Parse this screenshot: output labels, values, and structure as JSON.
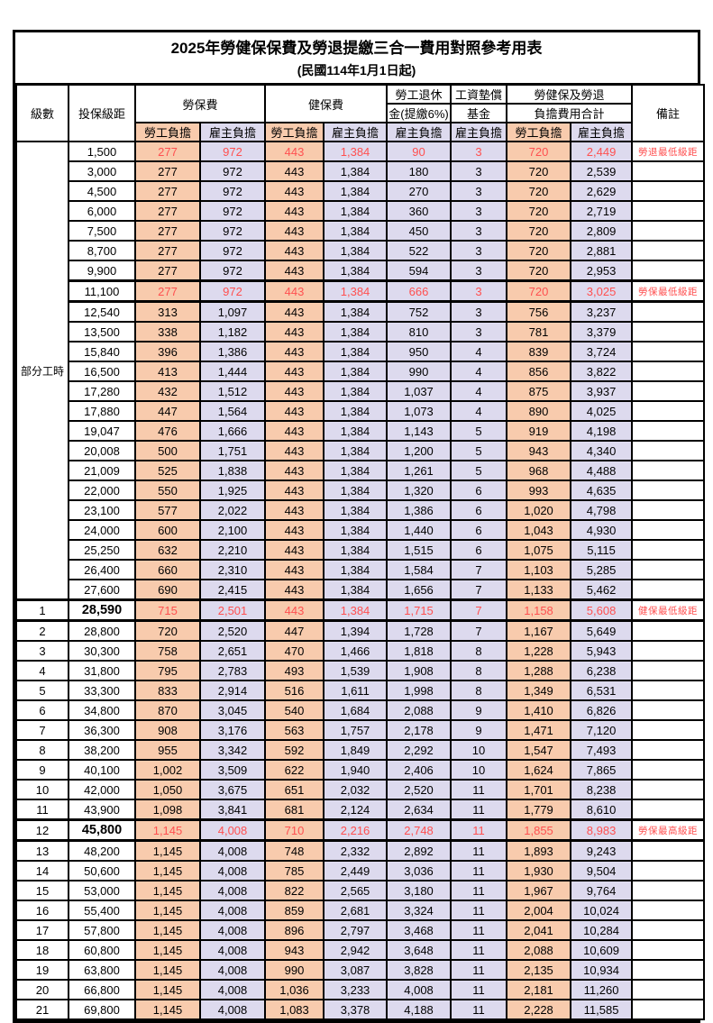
{
  "title": "2025年勞健保保費及勞退提繳三合一費用對照參考用表",
  "subtitle": "(民國114年1月1日起)",
  "header": {
    "level": "級數",
    "salary": "投保級距",
    "labor_insurance": "勞保費",
    "health_insurance": "健保費",
    "pension_line1": "勞工退休",
    "pension_line2": "金(提繳6%)",
    "wage_fund_line1": "工資墊償",
    "wage_fund_line2": "基金",
    "total_line1": "勞健保及勞退",
    "total_line2": "負擔費用合計",
    "remark": "備註",
    "employee_share": "勞工負擔",
    "employer_share": "雇主負擔"
  },
  "part_time": {
    "label": "部分工時",
    "span": 23
  },
  "colors": {
    "employee_bg": "#F8CBAD",
    "employer_bg": "#DDDAEE",
    "highlight_red": "#FF5050",
    "border": "#000000"
  },
  "rows": [
    {
      "level": "",
      "salary": "1,500",
      "li_emp": "277",
      "li_er": "972",
      "hi_emp": "443",
      "hi_er": "1,384",
      "pension": "90",
      "fund": "3",
      "tot_emp": "720",
      "tot_er": "2,449",
      "remark": "勞退最低級距",
      "red": true,
      "thick": false,
      "bold": false
    },
    {
      "level": "",
      "salary": "3,000",
      "li_emp": "277",
      "li_er": "972",
      "hi_emp": "443",
      "hi_er": "1,384",
      "pension": "180",
      "fund": "3",
      "tot_emp": "720",
      "tot_er": "2,539",
      "remark": "",
      "red": false,
      "thick": false,
      "bold": false
    },
    {
      "level": "",
      "salary": "4,500",
      "li_emp": "277",
      "li_er": "972",
      "hi_emp": "443",
      "hi_er": "1,384",
      "pension": "270",
      "fund": "3",
      "tot_emp": "720",
      "tot_er": "2,629",
      "remark": "",
      "red": false,
      "thick": false,
      "bold": false
    },
    {
      "level": "",
      "salary": "6,000",
      "li_emp": "277",
      "li_er": "972",
      "hi_emp": "443",
      "hi_er": "1,384",
      "pension": "360",
      "fund": "3",
      "tot_emp": "720",
      "tot_er": "2,719",
      "remark": "",
      "red": false,
      "thick": false,
      "bold": false
    },
    {
      "level": "",
      "salary": "7,500",
      "li_emp": "277",
      "li_er": "972",
      "hi_emp": "443",
      "hi_er": "1,384",
      "pension": "450",
      "fund": "3",
      "tot_emp": "720",
      "tot_er": "2,809",
      "remark": "",
      "red": false,
      "thick": false,
      "bold": false
    },
    {
      "level": "",
      "salary": "8,700",
      "li_emp": "277",
      "li_er": "972",
      "hi_emp": "443",
      "hi_er": "1,384",
      "pension": "522",
      "fund": "3",
      "tot_emp": "720",
      "tot_er": "2,881",
      "remark": "",
      "red": false,
      "thick": false,
      "bold": false
    },
    {
      "level": "",
      "salary": "9,900",
      "li_emp": "277",
      "li_er": "972",
      "hi_emp": "443",
      "hi_er": "1,384",
      "pension": "594",
      "fund": "3",
      "tot_emp": "720",
      "tot_er": "2,953",
      "remark": "",
      "red": false,
      "thick": false,
      "bold": false
    },
    {
      "level": "",
      "salary": "11,100",
      "li_emp": "277",
      "li_er": "972",
      "hi_emp": "443",
      "hi_er": "1,384",
      "pension": "666",
      "fund": "3",
      "tot_emp": "720",
      "tot_er": "3,025",
      "remark": "勞保最低級距",
      "red": true,
      "thick": true,
      "bold": false
    },
    {
      "level": "",
      "salary": "12,540",
      "li_emp": "313",
      "li_er": "1,097",
      "hi_emp": "443",
      "hi_er": "1,384",
      "pension": "752",
      "fund": "3",
      "tot_emp": "756",
      "tot_er": "3,237",
      "remark": "",
      "red": false,
      "thick": false,
      "bold": false
    },
    {
      "level": "",
      "salary": "13,500",
      "li_emp": "338",
      "li_er": "1,182",
      "hi_emp": "443",
      "hi_er": "1,384",
      "pension": "810",
      "fund": "3",
      "tot_emp": "781",
      "tot_er": "3,379",
      "remark": "",
      "red": false,
      "thick": false,
      "bold": false
    },
    {
      "level": "",
      "salary": "15,840",
      "li_emp": "396",
      "li_er": "1,386",
      "hi_emp": "443",
      "hi_er": "1,384",
      "pension": "950",
      "fund": "4",
      "tot_emp": "839",
      "tot_er": "3,724",
      "remark": "",
      "red": false,
      "thick": false,
      "bold": false
    },
    {
      "level": "",
      "salary": "16,500",
      "li_emp": "413",
      "li_er": "1,444",
      "hi_emp": "443",
      "hi_er": "1,384",
      "pension": "990",
      "fund": "4",
      "tot_emp": "856",
      "tot_er": "3,822",
      "remark": "",
      "red": false,
      "thick": false,
      "bold": false
    },
    {
      "level": "",
      "salary": "17,280",
      "li_emp": "432",
      "li_er": "1,512",
      "hi_emp": "443",
      "hi_er": "1,384",
      "pension": "1,037",
      "fund": "4",
      "tot_emp": "875",
      "tot_er": "3,937",
      "remark": "",
      "red": false,
      "thick": false,
      "bold": false
    },
    {
      "level": "",
      "salary": "17,880",
      "li_emp": "447",
      "li_er": "1,564",
      "hi_emp": "443",
      "hi_er": "1,384",
      "pension": "1,073",
      "fund": "4",
      "tot_emp": "890",
      "tot_er": "4,025",
      "remark": "",
      "red": false,
      "thick": false,
      "bold": false
    },
    {
      "level": "",
      "salary": "19,047",
      "li_emp": "476",
      "li_er": "1,666",
      "hi_emp": "443",
      "hi_er": "1,384",
      "pension": "1,143",
      "fund": "5",
      "tot_emp": "919",
      "tot_er": "4,198",
      "remark": "",
      "red": false,
      "thick": false,
      "bold": false
    },
    {
      "level": "",
      "salary": "20,008",
      "li_emp": "500",
      "li_er": "1,751",
      "hi_emp": "443",
      "hi_er": "1,384",
      "pension": "1,200",
      "fund": "5",
      "tot_emp": "943",
      "tot_er": "4,340",
      "remark": "",
      "red": false,
      "thick": false,
      "bold": false
    },
    {
      "level": "",
      "salary": "21,009",
      "li_emp": "525",
      "li_er": "1,838",
      "hi_emp": "443",
      "hi_er": "1,384",
      "pension": "1,261",
      "fund": "5",
      "tot_emp": "968",
      "tot_er": "4,488",
      "remark": "",
      "red": false,
      "thick": false,
      "bold": false
    },
    {
      "level": "",
      "salary": "22,000",
      "li_emp": "550",
      "li_er": "1,925",
      "hi_emp": "443",
      "hi_er": "1,384",
      "pension": "1,320",
      "fund": "6",
      "tot_emp": "993",
      "tot_er": "4,635",
      "remark": "",
      "red": false,
      "thick": false,
      "bold": false
    },
    {
      "level": "",
      "salary": "23,100",
      "li_emp": "577",
      "li_er": "2,022",
      "hi_emp": "443",
      "hi_er": "1,384",
      "pension": "1,386",
      "fund": "6",
      "tot_emp": "1,020",
      "tot_er": "4,798",
      "remark": "",
      "red": false,
      "thick": false,
      "bold": false
    },
    {
      "level": "",
      "salary": "24,000",
      "li_emp": "600",
      "li_er": "2,100",
      "hi_emp": "443",
      "hi_er": "1,384",
      "pension": "1,440",
      "fund": "6",
      "tot_emp": "1,043",
      "tot_er": "4,930",
      "remark": "",
      "red": false,
      "thick": false,
      "bold": false
    },
    {
      "level": "",
      "salary": "25,250",
      "li_emp": "632",
      "li_er": "2,210",
      "hi_emp": "443",
      "hi_er": "1,384",
      "pension": "1,515",
      "fund": "6",
      "tot_emp": "1,075",
      "tot_er": "5,115",
      "remark": "",
      "red": false,
      "thick": false,
      "bold": false
    },
    {
      "level": "",
      "salary": "26,400",
      "li_emp": "660",
      "li_er": "2,310",
      "hi_emp": "443",
      "hi_er": "1,384",
      "pension": "1,584",
      "fund": "7",
      "tot_emp": "1,103",
      "tot_er": "5,285",
      "remark": "",
      "red": false,
      "thick": false,
      "bold": false
    },
    {
      "level": "",
      "salary": "27,600",
      "li_emp": "690",
      "li_er": "2,415",
      "hi_emp": "443",
      "hi_er": "1,384",
      "pension": "1,656",
      "fund": "7",
      "tot_emp": "1,133",
      "tot_er": "5,462",
      "remark": "",
      "red": false,
      "thick": false,
      "bold": false
    },
    {
      "level": "1",
      "salary": "28,590",
      "li_emp": "715",
      "li_er": "2,501",
      "hi_emp": "443",
      "hi_er": "1,384",
      "pension": "1,715",
      "fund": "7",
      "tot_emp": "1,158",
      "tot_er": "5,608",
      "remark": "健保最低級距",
      "red": true,
      "thick": true,
      "bold": true
    },
    {
      "level": "2",
      "salary": "28,800",
      "li_emp": "720",
      "li_er": "2,520",
      "hi_emp": "447",
      "hi_er": "1,394",
      "pension": "1,728",
      "fund": "7",
      "tot_emp": "1,167",
      "tot_er": "5,649",
      "remark": "",
      "red": false,
      "thick": false,
      "bold": false
    },
    {
      "level": "3",
      "salary": "30,300",
      "li_emp": "758",
      "li_er": "2,651",
      "hi_emp": "470",
      "hi_er": "1,466",
      "pension": "1,818",
      "fund": "8",
      "tot_emp": "1,228",
      "tot_er": "5,943",
      "remark": "",
      "red": false,
      "thick": false,
      "bold": false
    },
    {
      "level": "4",
      "salary": "31,800",
      "li_emp": "795",
      "li_er": "2,783",
      "hi_emp": "493",
      "hi_er": "1,539",
      "pension": "1,908",
      "fund": "8",
      "tot_emp": "1,288",
      "tot_er": "6,238",
      "remark": "",
      "red": false,
      "thick": false,
      "bold": false
    },
    {
      "level": "5",
      "salary": "33,300",
      "li_emp": "833",
      "li_er": "2,914",
      "hi_emp": "516",
      "hi_er": "1,611",
      "pension": "1,998",
      "fund": "8",
      "tot_emp": "1,349",
      "tot_er": "6,531",
      "remark": "",
      "red": false,
      "thick": false,
      "bold": false
    },
    {
      "level": "6",
      "salary": "34,800",
      "li_emp": "870",
      "li_er": "3,045",
      "hi_emp": "540",
      "hi_er": "1,684",
      "pension": "2,088",
      "fund": "9",
      "tot_emp": "1,410",
      "tot_er": "6,826",
      "remark": "",
      "red": false,
      "thick": false,
      "bold": false
    },
    {
      "level": "7",
      "salary": "36,300",
      "li_emp": "908",
      "li_er": "3,176",
      "hi_emp": "563",
      "hi_er": "1,757",
      "pension": "2,178",
      "fund": "9",
      "tot_emp": "1,471",
      "tot_er": "7,120",
      "remark": "",
      "red": false,
      "thick": false,
      "bold": false
    },
    {
      "level": "8",
      "salary": "38,200",
      "li_emp": "955",
      "li_er": "3,342",
      "hi_emp": "592",
      "hi_er": "1,849",
      "pension": "2,292",
      "fund": "10",
      "tot_emp": "1,547",
      "tot_er": "7,493",
      "remark": "",
      "red": false,
      "thick": false,
      "bold": false
    },
    {
      "level": "9",
      "salary": "40,100",
      "li_emp": "1,002",
      "li_er": "3,509",
      "hi_emp": "622",
      "hi_er": "1,940",
      "pension": "2,406",
      "fund": "10",
      "tot_emp": "1,624",
      "tot_er": "7,865",
      "remark": "",
      "red": false,
      "thick": false,
      "bold": false
    },
    {
      "level": "10",
      "salary": "42,000",
      "li_emp": "1,050",
      "li_er": "3,675",
      "hi_emp": "651",
      "hi_er": "2,032",
      "pension": "2,520",
      "fund": "11",
      "tot_emp": "1,701",
      "tot_er": "8,238",
      "remark": "",
      "red": false,
      "thick": false,
      "bold": false
    },
    {
      "level": "11",
      "salary": "43,900",
      "li_emp": "1,098",
      "li_er": "3,841",
      "hi_emp": "681",
      "hi_er": "2,124",
      "pension": "2,634",
      "fund": "11",
      "tot_emp": "1,779",
      "tot_er": "8,610",
      "remark": "",
      "red": false,
      "thick": false,
      "bold": false
    },
    {
      "level": "12",
      "salary": "45,800",
      "li_emp": "1,145",
      "li_er": "4,008",
      "hi_emp": "710",
      "hi_er": "2,216",
      "pension": "2,748",
      "fund": "11",
      "tot_emp": "1,855",
      "tot_er": "8,983",
      "remark": "勞保最高級距",
      "red": true,
      "thick": true,
      "bold": true
    },
    {
      "level": "13",
      "salary": "48,200",
      "li_emp": "1,145",
      "li_er": "4,008",
      "hi_emp": "748",
      "hi_er": "2,332",
      "pension": "2,892",
      "fund": "11",
      "tot_emp": "1,893",
      "tot_er": "9,243",
      "remark": "",
      "red": false,
      "thick": false,
      "bold": false
    },
    {
      "level": "14",
      "salary": "50,600",
      "li_emp": "1,145",
      "li_er": "4,008",
      "hi_emp": "785",
      "hi_er": "2,449",
      "pension": "3,036",
      "fund": "11",
      "tot_emp": "1,930",
      "tot_er": "9,504",
      "remark": "",
      "red": false,
      "thick": false,
      "bold": false
    },
    {
      "level": "15",
      "salary": "53,000",
      "li_emp": "1,145",
      "li_er": "4,008",
      "hi_emp": "822",
      "hi_er": "2,565",
      "pension": "3,180",
      "fund": "11",
      "tot_emp": "1,967",
      "tot_er": "9,764",
      "remark": "",
      "red": false,
      "thick": false,
      "bold": false
    },
    {
      "level": "16",
      "salary": "55,400",
      "li_emp": "1,145",
      "li_er": "4,008",
      "hi_emp": "859",
      "hi_er": "2,681",
      "pension": "3,324",
      "fund": "11",
      "tot_emp": "2,004",
      "tot_er": "10,024",
      "remark": "",
      "red": false,
      "thick": false,
      "bold": false
    },
    {
      "level": "17",
      "salary": "57,800",
      "li_emp": "1,145",
      "li_er": "4,008",
      "hi_emp": "896",
      "hi_er": "2,797",
      "pension": "3,468",
      "fund": "11",
      "tot_emp": "2,041",
      "tot_er": "10,284",
      "remark": "",
      "red": false,
      "thick": false,
      "bold": false
    },
    {
      "level": "18",
      "salary": "60,800",
      "li_emp": "1,145",
      "li_er": "4,008",
      "hi_emp": "943",
      "hi_er": "2,942",
      "pension": "3,648",
      "fund": "11",
      "tot_emp": "2,088",
      "tot_er": "10,609",
      "remark": "",
      "red": false,
      "thick": false,
      "bold": false
    },
    {
      "level": "19",
      "salary": "63,800",
      "li_emp": "1,145",
      "li_er": "4,008",
      "hi_emp": "990",
      "hi_er": "3,087",
      "pension": "3,828",
      "fund": "11",
      "tot_emp": "2,135",
      "tot_er": "10,934",
      "remark": "",
      "red": false,
      "thick": false,
      "bold": false
    },
    {
      "level": "20",
      "salary": "66,800",
      "li_emp": "1,145",
      "li_er": "4,008",
      "hi_emp": "1,036",
      "hi_er": "3,233",
      "pension": "4,008",
      "fund": "11",
      "tot_emp": "2,181",
      "tot_er": "11,260",
      "remark": "",
      "red": false,
      "thick": false,
      "bold": false
    },
    {
      "level": "21",
      "salary": "69,800",
      "li_emp": "1,145",
      "li_er": "4,008",
      "hi_emp": "1,083",
      "hi_er": "3,378",
      "pension": "4,188",
      "fund": "11",
      "tot_emp": "2,228",
      "tot_er": "11,585",
      "remark": "",
      "red": false,
      "thick": false,
      "bold": false
    }
  ]
}
